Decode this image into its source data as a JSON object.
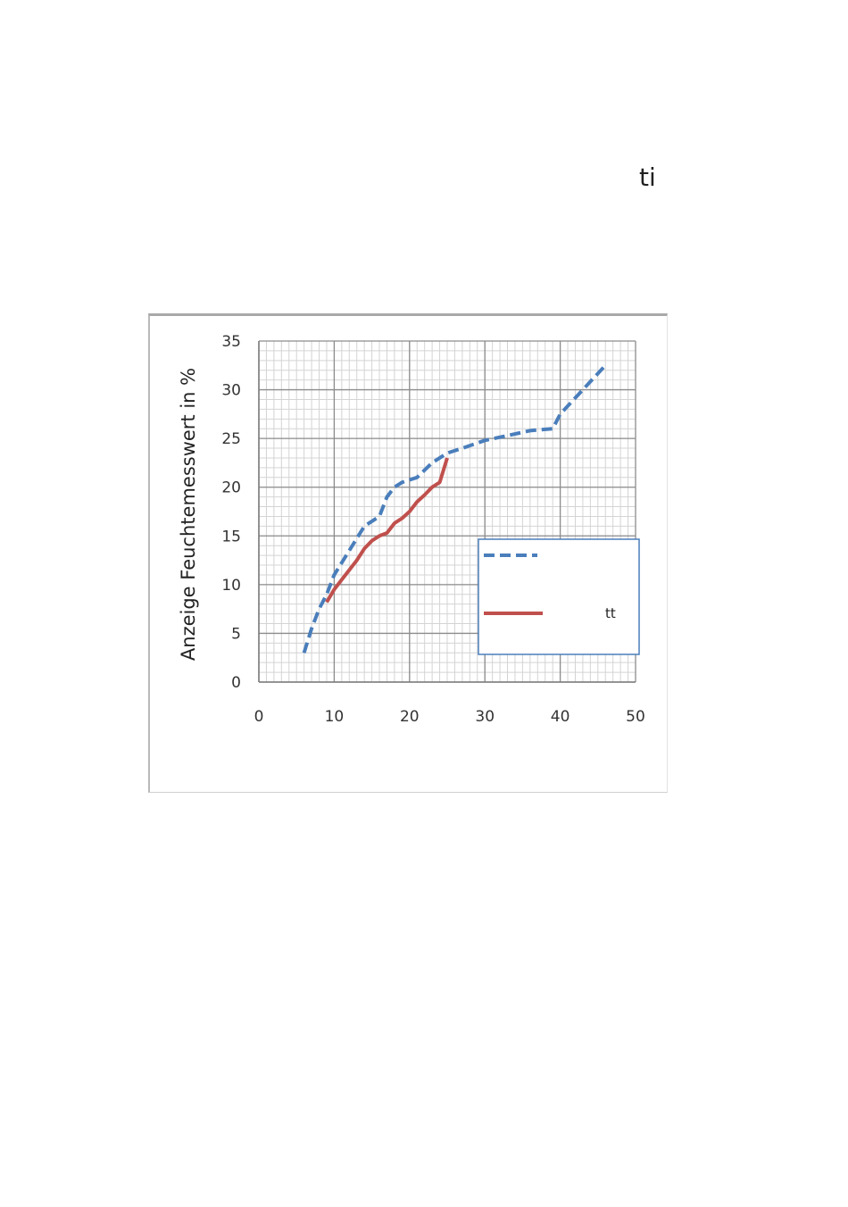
{
  "page": {
    "corner_text": "ti"
  },
  "chart_data": {
    "type": "line",
    "title": "",
    "xlabel": "",
    "ylabel": "Anzeige Feuchtemesswert in %",
    "xlim": [
      0,
      50
    ],
    "ylim": [
      0,
      35
    ],
    "x_ticks": [
      0,
      10,
      20,
      30,
      40,
      50
    ],
    "y_ticks": [
      0,
      5,
      10,
      15,
      20,
      25,
      30,
      35
    ],
    "grid": true,
    "legend_placement": "lower-right",
    "series": [
      {
        "name": "",
        "style": "dashed",
        "color": "#4a7ebb",
        "points": [
          [
            6,
            3
          ],
          [
            7,
            5.5
          ],
          [
            8,
            7.5
          ],
          [
            9,
            9
          ],
          [
            10,
            11
          ],
          [
            12,
            13.5
          ],
          [
            14,
            16
          ],
          [
            16,
            17
          ],
          [
            17,
            19
          ],
          [
            18,
            20
          ],
          [
            19,
            20.5
          ],
          [
            21,
            21
          ],
          [
            23,
            22.5
          ],
          [
            25,
            23.5
          ],
          [
            27,
            24
          ],
          [
            30,
            24.8
          ],
          [
            33,
            25.3
          ],
          [
            36,
            25.8
          ],
          [
            39,
            26
          ],
          [
            40,
            27.5
          ],
          [
            43,
            30
          ],
          [
            46,
            32.5
          ]
        ]
      },
      {
        "name": "tt",
        "style": "solid",
        "color": "#c0504d",
        "points": [
          [
            9,
            8.2
          ],
          [
            10,
            9.5
          ],
          [
            11,
            10.5
          ],
          [
            12,
            11.5
          ],
          [
            13,
            12.5
          ],
          [
            14,
            13.7
          ],
          [
            15,
            14.5
          ],
          [
            16,
            15
          ],
          [
            17,
            15.3
          ],
          [
            18,
            16.3
          ],
          [
            19,
            16.8
          ],
          [
            20,
            17.5
          ],
          [
            21,
            18.5
          ],
          [
            22,
            19.2
          ],
          [
            23,
            20
          ],
          [
            24,
            20.5
          ],
          [
            25,
            23
          ]
        ]
      }
    ]
  }
}
